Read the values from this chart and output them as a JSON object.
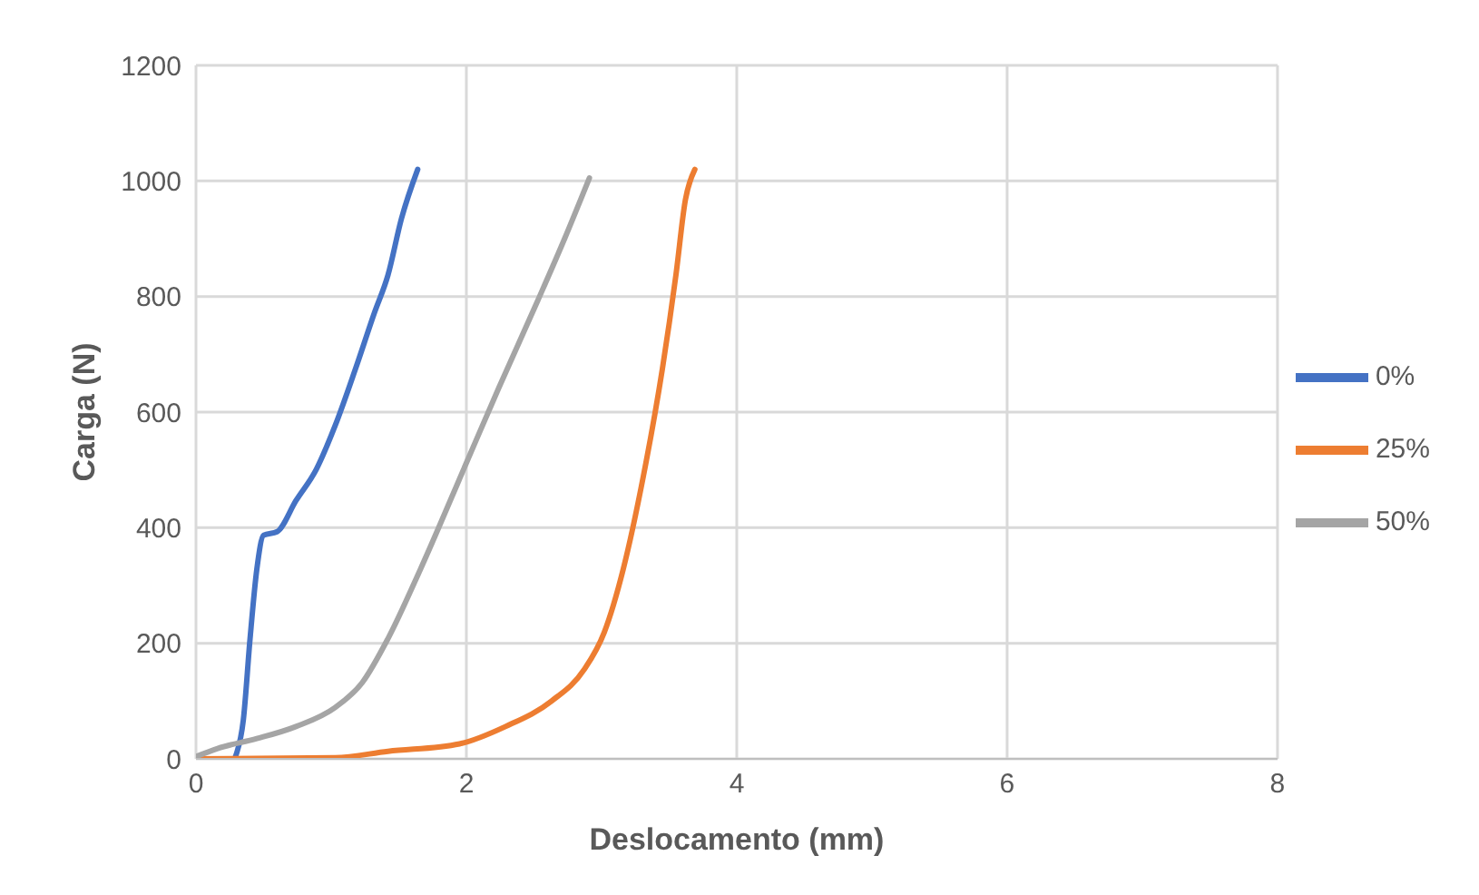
{
  "chart_data": {
    "type": "line",
    "xlabel": "Deslocamento (mm)",
    "ylabel": "Carga (N)",
    "xlim": [
      0,
      8
    ],
    "xticks": [
      0,
      2,
      4,
      6,
      8
    ],
    "ylim": [
      0,
      1200
    ],
    "yticks": [
      0,
      200,
      400,
      600,
      800,
      1000,
      1200
    ],
    "grid": true,
    "legend": "right",
    "marker": "none",
    "line_style": "solid",
    "series": [
      {
        "name": "0%",
        "color": "#4472c4",
        "x": [
          0,
          0.28,
          0.305,
          0.35,
          0.4,
          0.45,
          0.5,
          0.6,
          0.74,
          0.89,
          1.03,
          1.18,
          1.32,
          1.42,
          1.52,
          1.64
        ],
        "values": [
          0,
          0,
          13,
          67,
          208,
          328,
          387,
          393,
          447,
          501,
          577,
          675,
          772,
          837,
          935,
          1020
        ]
      },
      {
        "name": "25%",
        "color": "#ed7d31",
        "x": [
          0,
          1.03,
          1.42,
          1.95,
          2.29,
          2.63,
          2.87,
          3.02,
          3.16,
          3.31,
          3.45,
          3.55,
          3.62,
          3.69
        ],
        "values": [
          0,
          2,
          13,
          26,
          56,
          100,
          154,
          219,
          328,
          490,
          675,
          837,
          967,
          1020
        ]
      },
      {
        "name": "50%",
        "color": "#a5a5a5",
        "x": [
          0,
          0.16,
          0.45,
          0.74,
          1.03,
          1.23,
          1.42,
          1.66,
          2.0,
          2.24,
          2.53,
          2.73,
          2.91
        ],
        "values": [
          4,
          18,
          35,
          56,
          89,
          132,
          208,
          328,
          512,
          642,
          794,
          902,
          1005
        ]
      }
    ]
  }
}
